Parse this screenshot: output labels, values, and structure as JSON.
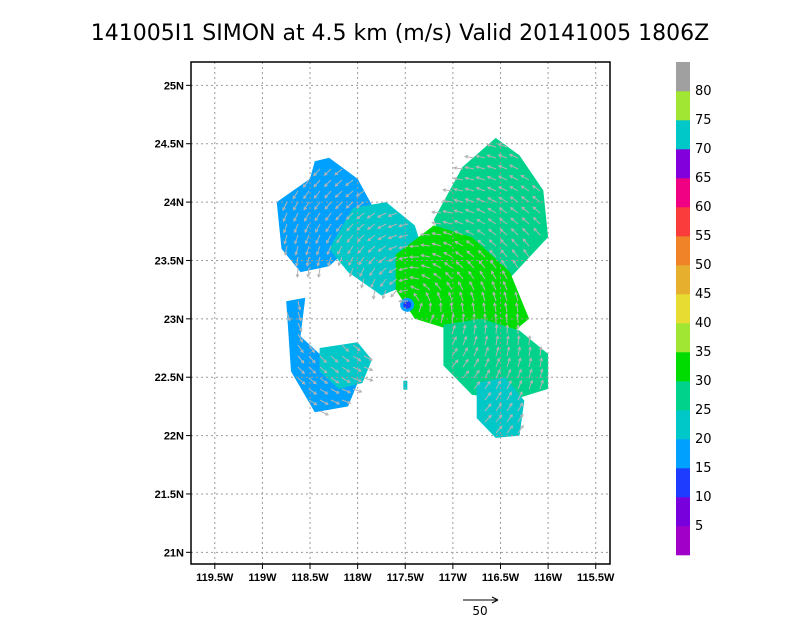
{
  "title": "141005I1 SIMON at 4.5 km (m/s) Valid 20141005 1806Z",
  "map": {
    "lon_range": [
      -119.75,
      -115.35
    ],
    "lat_range": [
      20.9,
      25.2
    ],
    "x_ticks": [
      {
        "value": -119.5,
        "label": "119.5W"
      },
      {
        "value": -119.0,
        "label": "119W"
      },
      {
        "value": -118.5,
        "label": "118.5W"
      },
      {
        "value": -118.0,
        "label": "118W"
      },
      {
        "value": -117.5,
        "label": "117.5W"
      },
      {
        "value": -117.0,
        "label": "117W"
      },
      {
        "value": -116.5,
        "label": "116.5W"
      },
      {
        "value": -116.0,
        "label": "116W"
      },
      {
        "value": -115.5,
        "label": "115.5W"
      }
    ],
    "y_ticks": [
      {
        "value": 21.0,
        "label": "21N"
      },
      {
        "value": 21.5,
        "label": "21.5N"
      },
      {
        "value": 22.0,
        "label": "22N"
      },
      {
        "value": 22.5,
        "label": "22.5N"
      },
      {
        "value": 23.0,
        "label": "23N"
      },
      {
        "value": 23.5,
        "label": "23.5N"
      },
      {
        "value": 24.0,
        "label": "24N"
      },
      {
        "value": 24.5,
        "label": "24.5N"
      },
      {
        "value": 25.0,
        "label": "25N"
      }
    ],
    "grid": "dotted",
    "center": {
      "lon": -117.48,
      "lat": 23.12
    }
  },
  "colorbar": {
    "labels": [
      "5",
      "10",
      "15",
      "20",
      "25",
      "30",
      "35",
      "40",
      "45",
      "50",
      "55",
      "60",
      "65",
      "70",
      "75",
      "80"
    ],
    "colors": [
      "#a000c8",
      "#7800dc",
      "#1e3cff",
      "#00a0ff",
      "#00c8c8",
      "#00d28c",
      "#00dc00",
      "#a0e632",
      "#e6dc32",
      "#e6af2d",
      "#f08228",
      "#fa3c3c",
      "#f00082",
      "#8200dc",
      "#00c8c8",
      "#a0e632",
      "#a0a0a0"
    ]
  },
  "wind_regions": [
    {
      "name": "northwest-band",
      "speed_class": "15-20",
      "lon": [
        -118.85,
        -118.5,
        -118.45,
        -118.3,
        -118.0,
        -117.8,
        -118.1,
        -118.3,
        -118.6,
        -118.8
      ],
      "lat": [
        24.0,
        24.2,
        24.35,
        24.38,
        24.2,
        23.9,
        23.6,
        23.45,
        23.4,
        23.6
      ]
    },
    {
      "name": "northwest-band-inner",
      "speed_class": "20-25",
      "lon": [
        -118.05,
        -117.7,
        -117.4,
        -117.3,
        -117.45,
        -117.75,
        -118.1,
        -118.3
      ],
      "lat": [
        23.95,
        24.0,
        23.8,
        23.55,
        23.3,
        23.2,
        23.4,
        23.6
      ]
    },
    {
      "name": "northeast-band",
      "speed_class": "25-30",
      "lon": [
        -117.2,
        -116.9,
        -116.55,
        -116.3,
        -116.05,
        -116.0,
        -116.4,
        -117.0
      ],
      "lat": [
        23.85,
        24.3,
        24.55,
        24.4,
        24.1,
        23.7,
        23.35,
        23.4
      ]
    },
    {
      "name": "core-ring",
      "speed_class": "30-35",
      "lon": [
        -117.6,
        -117.2,
        -116.8,
        -116.4,
        -116.2,
        -116.5,
        -117.0,
        -117.4,
        -117.6
      ],
      "lat": [
        23.55,
        23.8,
        23.7,
        23.4,
        23.0,
        22.8,
        22.9,
        23.0,
        23.25
      ]
    },
    {
      "name": "southeast-band",
      "speed_class": "25-30",
      "lon": [
        -117.1,
        -116.7,
        -116.3,
        -116.0,
        -116.0,
        -116.4,
        -116.8,
        -117.1
      ],
      "lat": [
        22.95,
        23.0,
        22.9,
        22.7,
        22.4,
        22.3,
        22.35,
        22.6
      ]
    },
    {
      "name": "southeast-tail",
      "speed_class": "20-25",
      "lon": [
        -116.75,
        -116.45,
        -116.25,
        -116.3,
        -116.55,
        -116.75
      ],
      "lat": [
        22.45,
        22.5,
        22.3,
        22.0,
        21.98,
        22.15
      ]
    },
    {
      "name": "west-arc",
      "speed_class": "15-20",
      "lon": [
        -118.75,
        -118.55,
        -118.6,
        -118.4,
        -118.25,
        -118.0,
        -118.1,
        -118.45,
        -118.7
      ],
      "lat": [
        23.15,
        23.18,
        22.85,
        22.7,
        22.6,
        22.45,
        22.25,
        22.2,
        22.55
      ]
    },
    {
      "name": "southwest-patch",
      "speed_class": "20-25",
      "lon": [
        -118.4,
        -118.0,
        -117.85,
        -117.95,
        -118.2,
        -118.4
      ],
      "lat": [
        22.75,
        22.8,
        22.65,
        22.45,
        22.4,
        22.55
      ]
    }
  ],
  "vector_scale": {
    "label": "50",
    "value_ms": 50
  }
}
